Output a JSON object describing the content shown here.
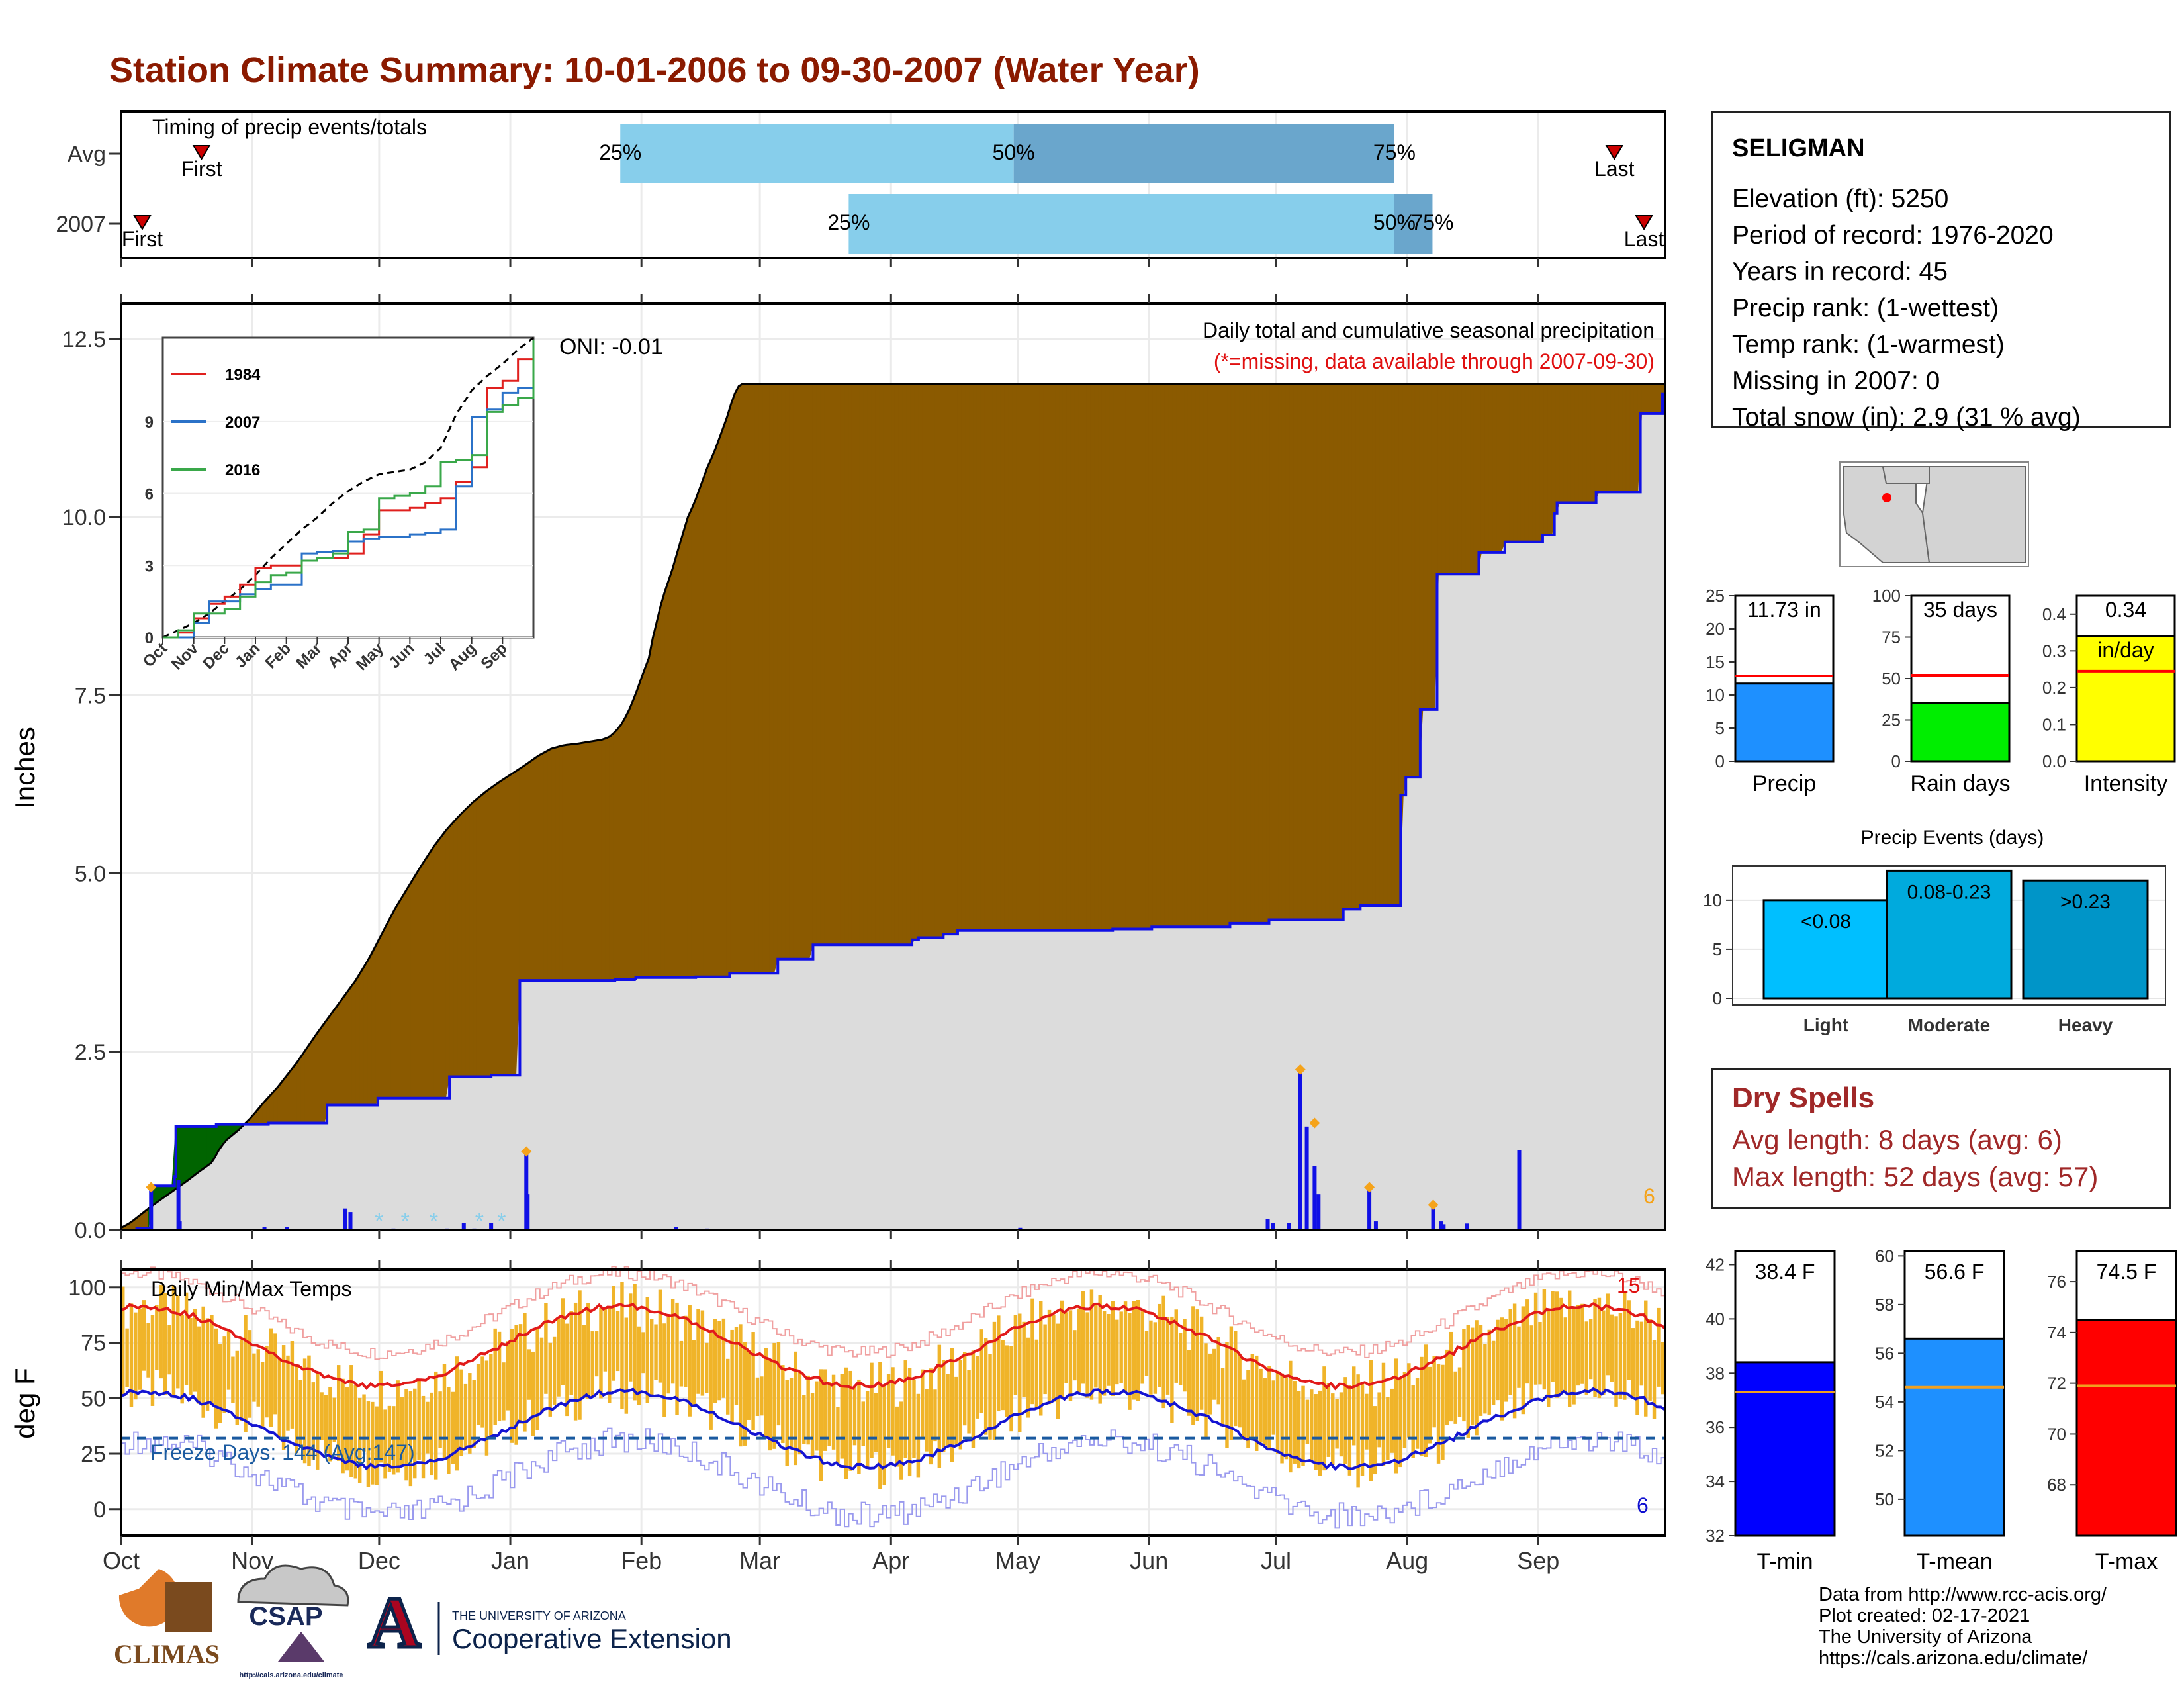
{
  "title": "Station Climate Summary: 10-01-2006 to 09-30-2007 (Water Year)",
  "timing": {
    "label": "Timing of precip events/totals",
    "rows": [
      {
        "name": "Avg",
        "first_doy": 19,
        "last_doy": 353,
        "p25_doy": 118,
        "p50_doy": 211,
        "p75_doy": 301
      },
      {
        "name": "2007",
        "first_doy": 5,
        "last_doy": 360,
        "p25_doy": 172,
        "p50_doy": 301,
        "p75_doy": 310
      }
    ],
    "first_label": "First",
    "last_label": "Last",
    "p25_label": "25%",
    "p50_label": "50%",
    "p75_label": "75%",
    "colors": {
      "lower": "#87ceeb",
      "upper": "#6aa6cc",
      "marker": "#cc0000"
    }
  },
  "precip": {
    "ylabel": "Inches",
    "yticks": [
      "0.0",
      "2.5",
      "5.0",
      "7.5",
      "10.0",
      "12.5"
    ],
    "ylim": [
      0,
      13.0
    ],
    "oni": "ONI: -0.01",
    "caption1": "Daily total and cumulative seasonal precipitation",
    "caption2": "(*=missing, data available through 2007-09-30)",
    "corner_count": "6",
    "avg_cum": [
      [
        0,
        0.03
      ],
      [
        7,
        0.1
      ],
      [
        14,
        0.2
      ],
      [
        21,
        0.3
      ],
      [
        30,
        0.42
      ],
      [
        40,
        0.55
      ],
      [
        50,
        0.68
      ],
      [
        60,
        0.82
      ],
      [
        70,
        0.95
      ],
      [
        75,
        1.12
      ],
      [
        80,
        1.25
      ],
      [
        90,
        1.4
      ],
      [
        100,
        1.58
      ],
      [
        110,
        1.8
      ],
      [
        120,
        2.0
      ],
      [
        135,
        2.35
      ],
      [
        150,
        2.75
      ],
      [
        160,
        3.0
      ],
      [
        170,
        3.25
      ],
      [
        180,
        3.5
      ],
      [
        190,
        3.8
      ],
      [
        200,
        4.15
      ],
      [
        210,
        4.5
      ],
      [
        220,
        4.8
      ],
      [
        230,
        5.1
      ],
      [
        240,
        5.38
      ],
      [
        250,
        5.62
      ],
      [
        260,
        5.82
      ],
      [
        270,
        6.0
      ],
      [
        280,
        6.15
      ],
      [
        290,
        6.28
      ],
      [
        300,
        6.4
      ],
      [
        310,
        6.52
      ],
      [
        320,
        6.65
      ],
      [
        330,
        6.75
      ],
      [
        340,
        6.8
      ],
      [
        350,
        6.82
      ],
      [
        360,
        6.85
      ],
      [
        370,
        6.88
      ],
      [
        375,
        6.92
      ],
      [
        380,
        7.0
      ],
      [
        385,
        7.12
      ],
      [
        390,
        7.3
      ],
      [
        395,
        7.52
      ],
      [
        400,
        7.78
      ],
      [
        405,
        8.02
      ],
      [
        408,
        8.3
      ],
      [
        410,
        8.45
      ],
      [
        414,
        8.75
      ],
      [
        418,
        9.0
      ],
      [
        422,
        9.2
      ],
      [
        426,
        9.45
      ],
      [
        430,
        9.7
      ],
      [
        435,
        10.0
      ],
      [
        440,
        10.2
      ],
      [
        445,
        10.45
      ],
      [
        450,
        10.7
      ],
      [
        455,
        10.9
      ],
      [
        460,
        11.15
      ],
      [
        465,
        11.4
      ],
      [
        470,
        11.7
      ],
      [
        475,
        11.87
      ]
    ],
    "cum_2007": [
      [
        0,
        0.0
      ],
      [
        12,
        0.02
      ],
      [
        21,
        0.02
      ],
      [
        23,
        0.62
      ],
      [
        40,
        0.62
      ],
      [
        41,
        0.75
      ],
      [
        42,
        1.45
      ],
      [
        72,
        1.45
      ],
      [
        73,
        1.48
      ],
      [
        112,
        1.48
      ],
      [
        113,
        1.5
      ],
      [
        157,
        1.5
      ],
      [
        158,
        1.75
      ],
      [
        196,
        1.75
      ],
      [
        197,
        1.85
      ],
      [
        251,
        1.85
      ],
      [
        252,
        2.15
      ],
      [
        283,
        2.15
      ],
      [
        284,
        2.17
      ],
      [
        305,
        2.17
      ],
      [
        306,
        3.5
      ],
      [
        378,
        3.5
      ],
      [
        379,
        3.51
      ],
      [
        394,
        3.52
      ],
      [
        395,
        3.54
      ],
      [
        440,
        3.54
      ],
      [
        441,
        3.55
      ],
      [
        466,
        3.55
      ],
      [
        467,
        3.6
      ],
      [
        488,
        3.6
      ],
      [
        489,
        3.6
      ],
      [
        503,
        3.6
      ],
      [
        504,
        3.8
      ],
      [
        530,
        3.8
      ],
      [
        531,
        4.0
      ],
      [
        580,
        4.0
      ],
      [
        581,
        4.0
      ],
      [
        606,
        4.0
      ],
      [
        607,
        4.07
      ],
      [
        610,
        4.07
      ],
      [
        612,
        4.1
      ],
      [
        630,
        4.1
      ],
      [
        631,
        4.15
      ],
      [
        641,
        4.15
      ],
      [
        642,
        4.2
      ],
      [
        730,
        4.2
      ],
      [
        731,
        4.2
      ],
      [
        760,
        4.2
      ],
      [
        761,
        4.22
      ],
      [
        790,
        4.22
      ],
      [
        791,
        4.25
      ],
      [
        850,
        4.25
      ],
      [
        851,
        4.3
      ],
      [
        880,
        4.3
      ],
      [
        881,
        4.35
      ],
      [
        937,
        4.35
      ],
      [
        938,
        4.5
      ],
      [
        950,
        4.5
      ],
      [
        951,
        4.55
      ],
      [
        980,
        4.55
      ],
      [
        982,
        6.1
      ],
      [
        986,
        6.35
      ],
      [
        994,
        6.35
      ],
      [
        997,
        7.3
      ],
      [
        1008,
        7.3
      ],
      [
        1010,
        9.2
      ],
      [
        1040,
        9.2
      ],
      [
        1042,
        9.5
      ],
      [
        1060,
        9.5
      ],
      [
        1062,
        9.65
      ],
      [
        1090,
        9.65
      ],
      [
        1091,
        9.75
      ],
      [
        1097,
        9.75
      ],
      [
        1100,
        10.05
      ],
      [
        1102,
        10.2
      ],
      [
        1130,
        10.2
      ],
      [
        1132,
        10.35
      ],
      [
        1164,
        10.35
      ],
      [
        1166,
        11.45
      ],
      [
        1182,
        11.45
      ],
      [
        1183,
        11.73
      ]
    ],
    "bars_2007": [
      [
        23,
        0.6
      ],
      [
        44,
        0.7
      ],
      [
        45,
        0.12
      ],
      [
        110,
        0.04
      ],
      [
        127,
        0.04
      ],
      [
        172,
        0.3
      ],
      [
        176,
        0.25
      ],
      [
        209,
        0.02
      ],
      [
        250,
        0.02
      ],
      [
        263,
        0.1
      ],
      [
        271,
        0.02
      ],
      [
        284,
        0.1
      ],
      [
        311,
        1.1
      ],
      [
        312,
        0.5
      ],
      [
        426,
        0.04
      ],
      [
        440,
        0.01
      ],
      [
        450,
        0.02
      ],
      [
        690,
        0.03
      ],
      [
        880,
        0.15
      ],
      [
        884,
        0.1
      ],
      [
        896,
        0.1
      ],
      [
        905,
        2.25
      ],
      [
        910,
        1.45
      ],
      [
        916,
        0.9
      ],
      [
        919,
        0.5
      ],
      [
        958,
        0.6
      ],
      [
        963,
        0.12
      ],
      [
        1007,
        0.35
      ],
      [
        1013,
        0.12
      ],
      [
        1015,
        0.08
      ],
      [
        1033,
        0.09
      ],
      [
        1073,
        1.12
      ]
    ],
    "missing_marks": [
      [
        198
      ],
      [
        218
      ],
      [
        240
      ],
      [
        275
      ],
      [
        292
      ]
    ],
    "orange_marks": [
      [
        23,
        0.6
      ],
      [
        311,
        1.1
      ],
      [
        905,
        2.25
      ],
      [
        916,
        1.5
      ],
      [
        958,
        0.6
      ],
      [
        1007,
        0.35
      ]
    ],
    "colors": {
      "above": "#8b5a00",
      "below": "#006400",
      "cum": "#1010e6",
      "area": "#dcdcdc",
      "bar": "#1010e6",
      "avg": "#000000"
    }
  },
  "inset": {
    "xlabels": [
      "Oct",
      "Nov",
      "Dec",
      "Jan",
      "Feb",
      "Mar",
      "Apr",
      "May",
      "Jun",
      "Jul",
      "Aug",
      "Sep"
    ],
    "yticks": [
      "0",
      "3",
      "6",
      "9"
    ],
    "ylim": [
      0,
      12.5
    ],
    "series": [
      {
        "name": "1984",
        "color": "#e0201e",
        "values": [
          0,
          0.2,
          0.8,
          1.4,
          1.7,
          2.2,
          2.9,
          3.0,
          3.0,
          3.2,
          3.3,
          3.3,
          3.5,
          4.3,
          5.3,
          5.3,
          5.4,
          5.6,
          5.8,
          6.5,
          7.1,
          10.4,
          10.7,
          11.6,
          12.0
        ]
      },
      {
        "name": "2007",
        "color": "#2b72c8",
        "values": [
          0,
          0.0,
          0.6,
          1.5,
          1.5,
          1.8,
          2.0,
          2.2,
          2.2,
          3.5,
          3.55,
          3.6,
          4.0,
          4.1,
          4.2,
          4.2,
          4.3,
          4.35,
          4.5,
          6.3,
          9.2,
          9.5,
          10.2,
          10.4,
          11.73
        ]
      },
      {
        "name": "2016",
        "color": "#3aa84a",
        "values": [
          0,
          0.3,
          1.0,
          1.0,
          1.2,
          1.7,
          2.3,
          2.6,
          2.7,
          3.2,
          3.3,
          3.5,
          4.4,
          4.5,
          5.8,
          5.9,
          6.0,
          6.3,
          7.3,
          7.4,
          7.6,
          9.4,
          9.7,
          10.0,
          12.4
        ]
      }
    ],
    "avg_values": [
      0,
      0.3,
      0.6,
      1.0,
      1.5,
      2.0,
      2.6,
      3.3,
      3.9,
      4.5,
      5.0,
      5.6,
      6.1,
      6.5,
      6.8,
      6.9,
      7.0,
      7.3,
      7.9,
      9.3,
      10.3,
      10.9,
      11.4,
      12.0,
      12.5
    ]
  },
  "temps": {
    "label": "Daily Min/Max Temps",
    "ylabel": "deg F",
    "yticks": [
      "0",
      "25",
      "50",
      "75",
      "100"
    ],
    "ylim": [
      -12,
      108
    ],
    "freeze_label": "Freeze Days: 144 (Avg:147)",
    "high_count": "15",
    "low_count": "6",
    "freeze_line": 32,
    "colors": {
      "bars": "#f0b429",
      "avgmax": "#e11a1a",
      "avgmin": "#1414d2",
      "recmax": "#f0a0a0",
      "recmin": "#9a9aee",
      "freeze": "#1a5aa0"
    }
  },
  "xaxis": {
    "months": [
      "Oct",
      "Nov",
      "Dec",
      "Jan",
      "Feb",
      "Mar",
      "Apr",
      "May",
      "Jun",
      "Jul",
      "Aug",
      "Sep"
    ]
  },
  "station": {
    "name": "SELIGMAN",
    "lines": [
      "Elevation (ft): 5250",
      "Period of record: 1976-2020",
      "Years in record: 45",
      "Precip rank:  (1-wettest)",
      "Temp rank:  (1-warmest)",
      "Missing in 2007: 0",
      "Total snow (in): 2.9 (31 % avg)"
    ]
  },
  "summary_bars": [
    {
      "label": "Precip",
      "value": 11.73,
      "avg": 12.9,
      "ymax": 25,
      "yticks": [
        "0",
        "5",
        "10",
        "15",
        "20",
        "25"
      ],
      "text": "11.73 in",
      "text2": "",
      "color": "#1e90ff"
    },
    {
      "label": "Rain days",
      "value": 35,
      "avg": 52,
      "ymax": 100,
      "yticks": [
        "0",
        "25",
        "50",
        "75",
        "100"
      ],
      "text": "35 days",
      "text2": "",
      "color": "#00ee00"
    },
    {
      "label": "Intensity",
      "value": 0.34,
      "avg": 0.245,
      "ymax": 0.45,
      "yticks": [
        "0.0",
        "0.1",
        "0.2",
        "0.3",
        "0.4"
      ],
      "text": "0.34",
      "text2": "in/day",
      "color": "#ffff00"
    }
  ],
  "events": {
    "title": "Precip Events (days)",
    "yticks": [
      "0",
      "5",
      "10"
    ],
    "ymax": 13.5,
    "bars": [
      {
        "label": "Light",
        "value": 10,
        "text": "<0.08",
        "color": "#00bfff"
      },
      {
        "label": "Moderate",
        "value": 13,
        "text": "0.08-0.23",
        "color": "#00aadd"
      },
      {
        "label": "Heavy",
        "value": 12,
        "text": ">0.23",
        "color": "#0095c8"
      }
    ]
  },
  "dry_spells": {
    "title": "Dry Spells",
    "avg_length": "Avg length: 8 days (avg: 6)",
    "max_length": "Max length: 52 days (avg: 57)"
  },
  "temp_bars": [
    {
      "label": "T-min",
      "value": 38.4,
      "avg": 37.3,
      "ylim": [
        32,
        42.5
      ],
      "yticks": [
        "32",
        "34",
        "36",
        "38",
        "40",
        "42"
      ],
      "text": "38.4 F",
      "color": "#0000ff"
    },
    {
      "label": "T-mean",
      "value": 56.6,
      "avg": 54.6,
      "ylim": [
        48.5,
        60.2
      ],
      "yticks": [
        "50",
        "52",
        "54",
        "56",
        "58",
        "60"
      ],
      "text": "56.6 F",
      "color": "#1e90ff"
    },
    {
      "label": "T-max",
      "value": 74.5,
      "avg": 71.9,
      "ylim": [
        66,
        77.2
      ],
      "yticks": [
        "68",
        "70",
        "72",
        "74",
        "76"
      ],
      "text": "74.5 F",
      "color": "#ff0000"
    }
  ],
  "credits": [
    "Data from http://www.rcc-acis.org/",
    "Plot created: 02-17-2021",
    "The University of Arizona",
    "https://cals.arizona.edu/climate/"
  ],
  "logos": {
    "climas": "CLIMAS",
    "csap": "CSAP",
    "csap_url": "http://cals.arizona.edu/climate",
    "ua_small": "THE UNIVERSITY OF ARIZONA",
    "ua_big": "Cooperative Extension",
    "ua_mark": "A"
  }
}
